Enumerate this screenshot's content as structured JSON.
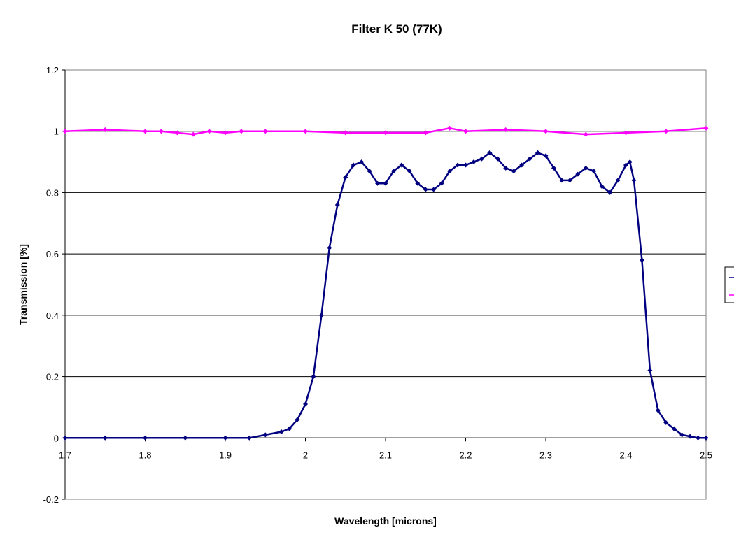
{
  "chart_data": {
    "type": "scatter",
    "title": "Filter K 50 (77K)",
    "xlabel": "Wavelength [microns]",
    "ylabel": "Transmission [%]",
    "xlim": [
      1.7,
      2.5
    ],
    "ylim": [
      -0.2,
      1.2
    ],
    "x_ticks": [
      "1.7",
      "1.8",
      "1.9",
      "2",
      "2.1",
      "2.2",
      "2.3",
      "2.4",
      "2.5"
    ],
    "y_ticks": [
      "-0.2",
      "0",
      "0.2",
      "0.4",
      "0.6",
      "0.8",
      "1",
      "1.2"
    ],
    "grid": "horizontal",
    "legend_placement": "right",
    "series": [
      {
        "color": "#000080",
        "marker": "diamond",
        "line": true,
        "x": [
          1.7,
          1.75,
          1.8,
          1.85,
          1.9,
          1.93,
          1.95,
          1.97,
          1.98,
          1.99,
          2.0,
          2.01,
          2.02,
          2.03,
          2.04,
          2.05,
          2.06,
          2.07,
          2.08,
          2.09,
          2.1,
          2.11,
          2.12,
          2.13,
          2.14,
          2.15,
          2.16,
          2.17,
          2.18,
          2.19,
          2.2,
          2.21,
          2.22,
          2.23,
          2.24,
          2.25,
          2.26,
          2.27,
          2.28,
          2.29,
          2.3,
          2.31,
          2.32,
          2.33,
          2.34,
          2.35,
          2.36,
          2.37,
          2.38,
          2.39,
          2.4,
          2.405,
          2.41,
          2.42,
          2.43,
          2.44,
          2.45,
          2.46,
          2.47,
          2.48,
          2.49,
          2.5
        ],
        "y": [
          0.0,
          0.0,
          0.0,
          0.0,
          0.0,
          0.0,
          0.01,
          0.02,
          0.03,
          0.06,
          0.11,
          0.2,
          0.4,
          0.62,
          0.76,
          0.85,
          0.89,
          0.9,
          0.87,
          0.83,
          0.83,
          0.87,
          0.89,
          0.87,
          0.83,
          0.81,
          0.81,
          0.83,
          0.87,
          0.89,
          0.89,
          0.9,
          0.91,
          0.93,
          0.91,
          0.88,
          0.87,
          0.89,
          0.91,
          0.93,
          0.92,
          0.88,
          0.84,
          0.84,
          0.86,
          0.88,
          0.87,
          0.82,
          0.8,
          0.84,
          0.89,
          0.9,
          0.84,
          0.58,
          0.22,
          0.09,
          0.05,
          0.03,
          0.01,
          0.005,
          0.0,
          0.0
        ]
      },
      {
        "color": "#FF00FF",
        "marker": "diamond",
        "line": true,
        "x": [
          1.7,
          1.75,
          1.8,
          1.82,
          1.84,
          1.86,
          1.88,
          1.9,
          1.92,
          1.95,
          2.0,
          2.05,
          2.1,
          2.15,
          2.18,
          2.2,
          2.25,
          2.3,
          2.35,
          2.4,
          2.45,
          2.5
        ],
        "y": [
          1.0,
          1.005,
          1.0,
          1.0,
          0.995,
          0.99,
          1.0,
          0.995,
          1.0,
          1.0,
          1.0,
          0.995,
          0.995,
          0.995,
          1.01,
          1.0,
          1.005,
          1.0,
          0.99,
          0.995,
          1.0,
          1.01
        ]
      }
    ]
  }
}
